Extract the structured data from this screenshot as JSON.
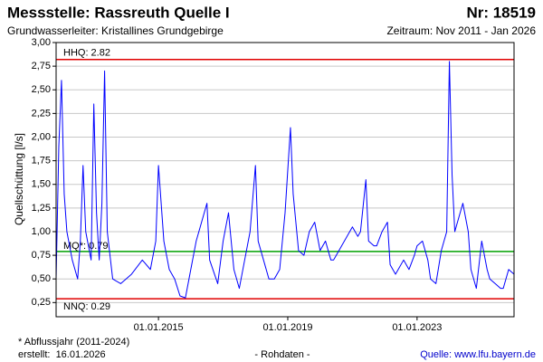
{
  "chart_data": {
    "type": "line",
    "title": "Messstelle: Rassreuth Quelle I",
    "number": "Nr: 18519",
    "subtitle": "Grundwasserleiter: Kristallines Grundgebirge",
    "period": "Zeitraum: Nov 2011 - Jan 2026",
    "ylabel": "Quellschüttung [l/s]",
    "x": [
      "2011-11",
      "2011-12",
      "2012-01",
      "2012-02",
      "2012-03",
      "2012-05",
      "2012-07",
      "2012-08",
      "2012-09",
      "2012-10",
      "2012-12",
      "2013-01",
      "2013-02",
      "2013-03",
      "2013-04",
      "2013-05",
      "2013-06",
      "2013-08",
      "2013-11",
      "2014-03",
      "2014-07",
      "2014-10",
      "2014-12",
      "2015-01",
      "2015-03",
      "2015-05",
      "2015-07",
      "2015-09",
      "2015-11",
      "2016-01",
      "2016-03",
      "2016-05",
      "2016-07",
      "2016-08",
      "2016-11",
      "2017-01",
      "2017-03",
      "2017-05",
      "2017-07",
      "2017-09",
      "2017-11",
      "2018-01",
      "2018-02",
      "2018-04",
      "2018-06",
      "2018-08",
      "2018-10",
      "2018-12",
      "2019-02",
      "2019-03",
      "2019-05",
      "2019-07",
      "2019-09",
      "2019-11",
      "2020-01",
      "2020-03",
      "2020-05",
      "2020-06",
      "2020-07",
      "2021-01",
      "2021-03",
      "2021-04",
      "2021-06",
      "2021-07",
      "2021-09",
      "2021-10",
      "2021-12",
      "2022-02",
      "2022-03",
      "2022-05",
      "2022-08",
      "2022-10",
      "2022-12",
      "2023-01",
      "2023-03",
      "2023-05",
      "2023-06",
      "2023-08",
      "2023-10",
      "2023-12",
      "2024-01",
      "2024-02",
      "2024-03",
      "2024-04",
      "2024-06",
      "2024-08",
      "2024-09",
      "2024-11",
      "2025-01",
      "2025-03",
      "2025-04",
      "2025-06",
      "2025-08",
      "2025-09",
      "2025-11",
      "2026-01"
    ],
    "series": [
      {
        "name": "Quellschüttung",
        "color": "#0000ff",
        "values": [
          0.5,
          1.9,
          2.6,
          1.4,
          1.0,
          0.7,
          0.5,
          0.9,
          1.7,
          1.0,
          0.7,
          2.35,
          1.2,
          0.7,
          1.3,
          2.7,
          1.0,
          0.5,
          0.45,
          0.55,
          0.7,
          0.6,
          0.9,
          1.7,
          0.9,
          0.6,
          0.5,
          0.32,
          0.3,
          0.6,
          0.9,
          1.1,
          1.3,
          0.7,
          0.45,
          0.9,
          1.2,
          0.6,
          0.4,
          0.7,
          1.0,
          1.7,
          0.9,
          0.7,
          0.5,
          0.5,
          0.6,
          1.2,
          2.1,
          1.4,
          0.8,
          0.75,
          1.0,
          1.1,
          0.8,
          0.9,
          0.7,
          0.7,
          0.75,
          1.05,
          0.95,
          1.0,
          1.55,
          0.9,
          0.85,
          0.85,
          1.0,
          1.1,
          0.65,
          0.55,
          0.7,
          0.6,
          0.75,
          0.85,
          0.9,
          0.7,
          0.5,
          0.45,
          0.8,
          1.0,
          2.8,
          1.6,
          1.0,
          1.1,
          1.3,
          1.0,
          0.6,
          0.4,
          0.9,
          0.6,
          0.5,
          0.45,
          0.4,
          0.4,
          0.6,
          0.55
        ]
      }
    ],
    "reference_lines": [
      {
        "label": "HHQ: 2.82",
        "value": 2.82,
        "color": "#e00000"
      },
      {
        "label": "MQ*: 0.79",
        "value": 0.79,
        "color": "#00a000"
      },
      {
        "label": "NNQ: 0.29",
        "value": 0.29,
        "color": "#e00000"
      }
    ],
    "xlim": [
      "2011-11",
      "2026-01"
    ],
    "xticks": [
      {
        "value": "2015-01-01",
        "label": "01.01.2015"
      },
      {
        "value": "2019-01-01",
        "label": "01.01.2019"
      },
      {
        "value": "2023-01-01",
        "label": "01.01.2023"
      }
    ],
    "ylim": [
      0.1,
      3.0
    ],
    "yticks": [
      {
        "value": 0.25,
        "label": "0,25"
      },
      {
        "value": 0.5,
        "label": "0,50"
      },
      {
        "value": 0.75,
        "label": "0,75"
      },
      {
        "value": 1.0,
        "label": "1,00"
      },
      {
        "value": 1.25,
        "label": "1,25"
      },
      {
        "value": 1.5,
        "label": "1,50"
      },
      {
        "value": 1.75,
        "label": "1,75"
      },
      {
        "value": 2.0,
        "label": "2,00"
      },
      {
        "value": 2.25,
        "label": "2,25"
      },
      {
        "value": 2.5,
        "label": "2,50"
      },
      {
        "value": 2.75,
        "label": "2,75"
      },
      {
        "value": 3.0,
        "label": "3,00"
      }
    ],
    "grid": true,
    "footnote": "* Abflussjahr (2011-2024)",
    "created": "erstellt:  16.01.2026",
    "data_note": "- Rohdaten -",
    "source": "Quelle: www.lfu.bayern.de"
  }
}
